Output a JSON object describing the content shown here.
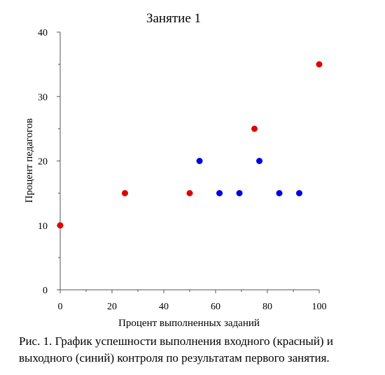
{
  "chart_data": {
    "type": "scatter",
    "title": "Занятие 1",
    "xlabel": "Процент выполненных заданий",
    "ylabel": "Процент педагогов",
    "xlim": [
      0,
      100
    ],
    "ylim": [
      0,
      40
    ],
    "xticks": [
      0,
      20,
      40,
      60,
      80,
      100
    ],
    "yticks": [
      0,
      10,
      20,
      30,
      40
    ],
    "grid": false,
    "series": [
      {
        "color": "#e00000",
        "points": [
          [
            0,
            10
          ],
          [
            25,
            15
          ],
          [
            50,
            15
          ],
          [
            75,
            25
          ],
          [
            100,
            35
          ]
        ]
      },
      {
        "color": "#0000e0",
        "points": [
          [
            53.8,
            20
          ],
          [
            61.5,
            15
          ],
          [
            69.2,
            15
          ],
          [
            76.9,
            20
          ],
          [
            84.6,
            15
          ],
          [
            92.3,
            15
          ]
        ]
      }
    ]
  },
  "caption": "Рис. 1. График успешности выполнения входного (красный) и выходного (синий) контроля по результатам первого занятия."
}
